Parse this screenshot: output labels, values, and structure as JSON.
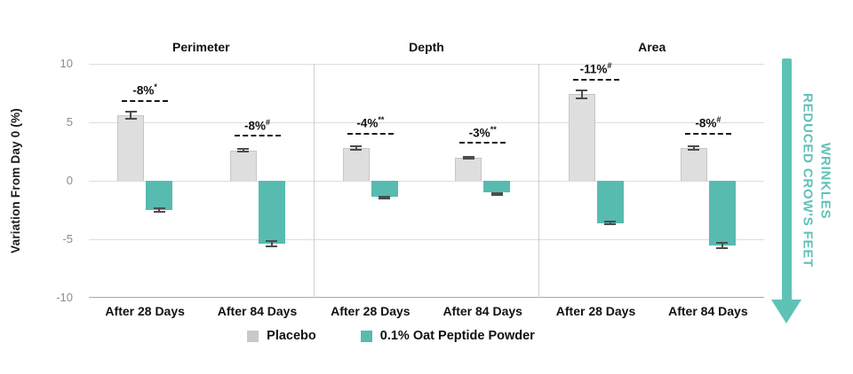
{
  "chart_data": {
    "type": "bar",
    "ylabel": "Variation From Day 0 (%)",
    "ylim": [
      -10,
      10
    ],
    "yticks": [
      10,
      5,
      0,
      -5,
      -10
    ],
    "grid": "horizontal",
    "legend_position": "bottom-center",
    "series_names": [
      "Placebo",
      "0.1% Oat Peptide Powder"
    ],
    "panels": [
      {
        "title": "Perimeter",
        "groups": [
          {
            "label": "After 28 Days",
            "placebo": 5.6,
            "placebo_err": 0.4,
            "oat": -2.5,
            "oat_err": 0.2,
            "annotation": "-8%",
            "annotation_sup": "*"
          },
          {
            "label": "After 84 Days",
            "placebo": 2.6,
            "placebo_err": 0.2,
            "oat": -5.4,
            "oat_err": 0.3,
            "annotation": "-8%",
            "annotation_sup": "#"
          }
        ]
      },
      {
        "title": "Depth",
        "groups": [
          {
            "label": "After 28 Days",
            "placebo": 2.8,
            "placebo_err": 0.2,
            "oat": -1.4,
            "oat_err": 0.1,
            "annotation": "-4%",
            "annotation_sup": "**"
          },
          {
            "label": "After 84 Days",
            "placebo": 2.0,
            "placebo_err": 0.15,
            "oat": -1.0,
            "oat_err": 0.05,
            "annotation": "-3%",
            "annotation_sup": "**"
          }
        ]
      },
      {
        "title": "Area",
        "groups": [
          {
            "label": "After 28 Days",
            "placebo": 7.4,
            "placebo_err": 0.4,
            "oat": -3.6,
            "oat_err": 0.2,
            "annotation": "-11%",
            "annotation_sup": "#"
          },
          {
            "label": "After 84 Days",
            "placebo": 2.8,
            "placebo_err": 0.2,
            "oat": -5.5,
            "oat_err": 0.3,
            "annotation": "-8%",
            "annotation_sup": "#"
          }
        ]
      }
    ],
    "legend": [
      {
        "label": "Placebo",
        "color": "#c9c9c9"
      },
      {
        "label": "0.1% Oat Peptide Powder",
        "color": "#57bbb0"
      }
    ]
  },
  "arrow": {
    "line1": "REDUCED CROW'S FEET",
    "line2": "WRINKLES",
    "color": "#5fc2b6"
  },
  "colors": {
    "placebo_bar": "#dedede",
    "oat_bar": "#57bbb0",
    "gridline": "#dcdcdc",
    "axis_line": "#aaaaaa",
    "tick_text": "#8c8c8c",
    "error_bar": "#4d4d4d",
    "annotation_text": "#181818"
  }
}
